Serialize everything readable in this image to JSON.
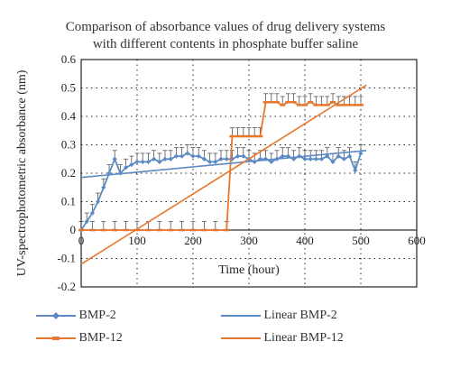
{
  "chart_data": {
    "type": "line",
    "title_lines": [
      "Comparison of absorbance values of drug delivery systems",
      "with different contents in phosphate buffer saline"
    ],
    "xlabel": "Time (hour)",
    "ylabel": "UV-spectrophotometric absorbance (nm)",
    "xlim": [
      0,
      600
    ],
    "ylim": [
      -0.2,
      0.6
    ],
    "xticks": [
      "0",
      "100",
      "200",
      "300",
      "400",
      "500",
      "600"
    ],
    "yticks": [
      "-0.2",
      "-0.1",
      "0",
      "0.1",
      "0.2",
      "0.3",
      "0.4",
      "0.5",
      "0.6"
    ],
    "grid": true,
    "legend_position": "bottom",
    "series": [
      {
        "name": "BMP-2",
        "color": "#5b8ac6",
        "marker": "diamond",
        "x": [
          0,
          10,
          20,
          30,
          40,
          50,
          60,
          70,
          80,
          90,
          100,
          110,
          120,
          130,
          140,
          150,
          160,
          170,
          180,
          190,
          200,
          210,
          220,
          230,
          240,
          250,
          260,
          270,
          280,
          290,
          300,
          310,
          320,
          330,
          340,
          350,
          360,
          370,
          380,
          390,
          400,
          410,
          420,
          430,
          440,
          450,
          460,
          470,
          480,
          490,
          500
        ],
        "y": [
          0,
          0.03,
          0.06,
          0.1,
          0.15,
          0.2,
          0.25,
          0.2,
          0.22,
          0.23,
          0.24,
          0.24,
          0.24,
          0.25,
          0.24,
          0.25,
          0.25,
          0.26,
          0.26,
          0.27,
          0.26,
          0.26,
          0.25,
          0.24,
          0.24,
          0.25,
          0.25,
          0.25,
          0.26,
          0.26,
          0.25,
          0.24,
          0.25,
          0.25,
          0.24,
          0.25,
          0.26,
          0.26,
          0.25,
          0.26,
          0.25,
          0.25,
          0.25,
          0.25,
          0.26,
          0.24,
          0.26,
          0.25,
          0.26,
          0.21,
          0.27
        ],
        "error": 0.03
      },
      {
        "name": "BMP-12",
        "color": "#e8772e",
        "marker": "dash",
        "x": [
          0,
          20,
          40,
          60,
          80,
          100,
          120,
          140,
          160,
          180,
          200,
          220,
          240,
          260,
          270,
          280,
          290,
          300,
          310,
          320,
          330,
          340,
          350,
          360,
          370,
          380,
          390,
          400,
          410,
          420,
          430,
          440,
          450,
          460,
          470,
          480,
          490,
          500
        ],
        "y": [
          0,
          0,
          0,
          0,
          0,
          0,
          0,
          0,
          0,
          0,
          0,
          0,
          0,
          0,
          0.33,
          0.33,
          0.33,
          0.33,
          0.33,
          0.33,
          0.45,
          0.45,
          0.45,
          0.44,
          0.45,
          0.45,
          0.44,
          0.44,
          0.45,
          0.44,
          0.44,
          0.44,
          0.45,
          0.44,
          0.44,
          0.44,
          0.44,
          0.44
        ],
        "error": 0.03
      },
      {
        "name": "Linear BMP-2",
        "color": "#5b8ac6",
        "trend": [
          [
            0,
            0.185
          ],
          [
            510,
            0.28
          ]
        ]
      },
      {
        "name": "Linear BMP-12",
        "color": "#e8772e",
        "trend": [
          [
            0,
            -0.12
          ],
          [
            510,
            0.51
          ]
        ]
      }
    ]
  }
}
